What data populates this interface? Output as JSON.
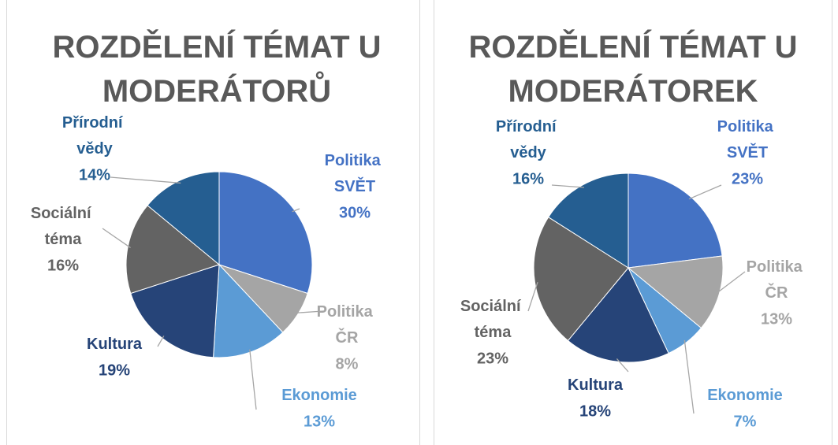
{
  "chart_data": [
    {
      "type": "pie",
      "title": "ROZDĚLENÍ TÉMAT U MODERÁTORŮ",
      "categories": [
        "Politika SVĚT",
        "Politika ČR",
        "Ekonomie",
        "Kultura",
        "Sociální téma",
        "Přírodní vědy"
      ],
      "values": [
        30,
        8,
        13,
        19,
        16,
        14
      ],
      "value_labels": [
        "30%",
        "8%",
        "13%",
        "19%",
        "16%",
        "14%"
      ],
      "colors": [
        "#4472c4",
        "#a5a5a5",
        "#5b9bd5",
        "#264478",
        "#636363",
        "#255e91"
      ]
    },
    {
      "type": "pie",
      "title": "ROZDĚLENÍ TÉMAT U MODERÁTOREK",
      "categories": [
        "Politika SVĚT",
        "Politika ČR",
        "Ekonomie",
        "Kultura",
        "Sociální téma",
        "Přírodní vědy"
      ],
      "values": [
        23,
        13,
        7,
        18,
        23,
        16
      ],
      "value_labels": [
        "23%",
        "13%",
        "7%",
        "18%",
        "23%",
        "16%"
      ],
      "colors": [
        "#4472c4",
        "#a5a5a5",
        "#5b9bd5",
        "#264478",
        "#636363",
        "#255e91"
      ]
    }
  ]
}
